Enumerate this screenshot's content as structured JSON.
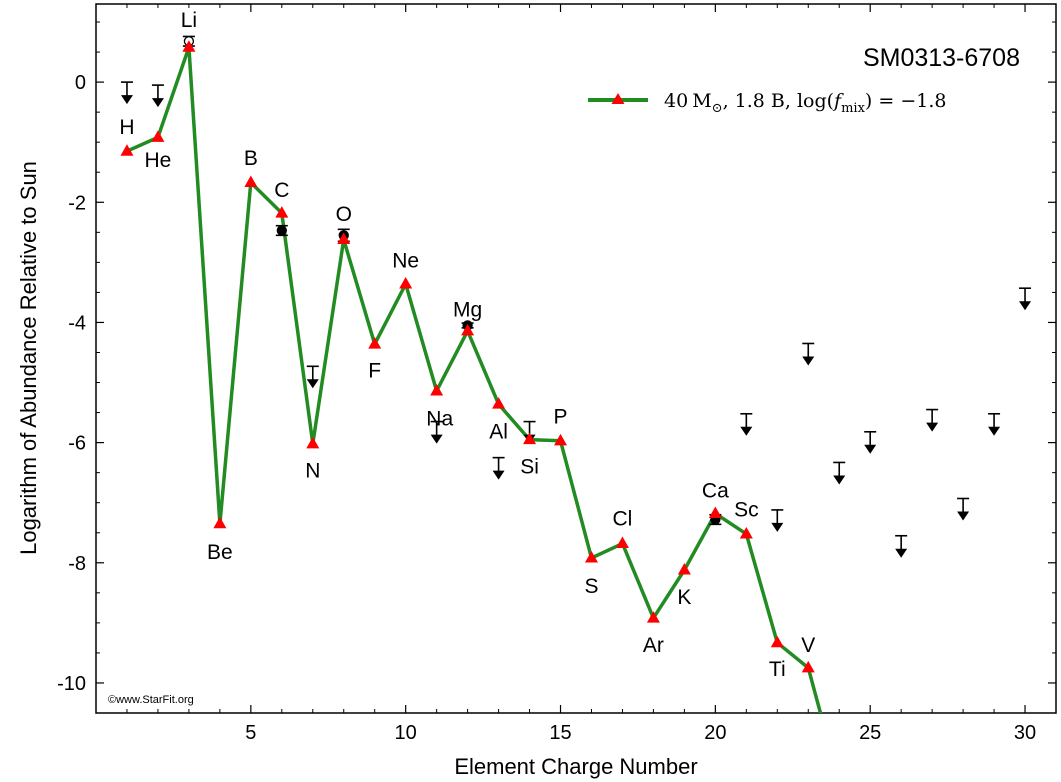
{
  "chart_data": {
    "type": "line",
    "title": "SM0313-6708",
    "xlabel": "Element Charge Number",
    "ylabel": "Logarithm of Abundance Relative to Sun",
    "xlim": [
      0,
      31
    ],
    "ylim": [
      -10.5,
      1.3
    ],
    "x_ticks": [
      5,
      10,
      15,
      20,
      25,
      30
    ],
    "y_ticks": [
      0,
      -2,
      -4,
      -6,
      -8,
      -10
    ],
    "grid": false,
    "legend_position": "top-right",
    "credit": "©www.StarFit.org",
    "model_series": {
      "name": "40 M⊙, 1.8 B, log(f_mix) = −1.8",
      "legend_parts": [
        "40",
        "M",
        "⊙",
        ", 1.8 B,  log(",
        "f",
        "mix",
        ") = −1.8"
      ],
      "line_color": "#228b22",
      "marker_color": "#ff0000",
      "marker": "triangle",
      "points": [
        {
          "z": 1,
          "y": -1.15
        },
        {
          "z": 2,
          "y": -0.92
        },
        {
          "z": 3,
          "y": 0.58
        },
        {
          "z": 4,
          "y": -7.35
        },
        {
          "z": 5,
          "y": -1.67
        },
        {
          "z": 6,
          "y": -2.18
        },
        {
          "z": 7,
          "y": -6.02
        },
        {
          "z": 8,
          "y": -2.62
        },
        {
          "z": 9,
          "y": -4.36
        },
        {
          "z": 10,
          "y": -3.36
        },
        {
          "z": 11,
          "y": -5.14
        },
        {
          "z": 12,
          "y": -4.14
        },
        {
          "z": 13,
          "y": -5.36
        },
        {
          "z": 14,
          "y": -5.95
        },
        {
          "z": 15,
          "y": -5.97
        },
        {
          "z": 16,
          "y": -7.92
        },
        {
          "z": 17,
          "y": -7.68
        },
        {
          "z": 18,
          "y": -8.92
        },
        {
          "z": 19,
          "y": -8.12
        },
        {
          "z": 20,
          "y": -7.18
        },
        {
          "z": 21,
          "y": -7.52
        },
        {
          "z": 22,
          "y": -9.33
        },
        {
          "z": 23,
          "y": -9.75
        },
        {
          "z": 23.5,
          "y": -10.7
        }
      ]
    },
    "observed_detections": [
      {
        "z": 3,
        "y": 0.68,
        "err": 0.08,
        "open": true
      },
      {
        "z": 6,
        "y": -2.47,
        "err": 0.08,
        "open": false
      },
      {
        "z": 8,
        "y": -2.55,
        "err": 0.1,
        "open": false
      },
      {
        "z": 12,
        "y": -4.05,
        "err": 0.04,
        "open": false
      },
      {
        "z": 20,
        "y": -7.28,
        "err": 0.08,
        "open": false
      }
    ],
    "upper_limits": [
      {
        "z": 1,
        "y": 0.0
      },
      {
        "z": 2,
        "y": -0.05
      },
      {
        "z": 7,
        "y": -4.73
      },
      {
        "z": 11,
        "y": -5.65
      },
      {
        "z": 13,
        "y": -6.25
      },
      {
        "z": 14,
        "y": -5.65
      },
      {
        "z": 21,
        "y": -5.52
      },
      {
        "z": 22,
        "y": -7.12
      },
      {
        "z": 23,
        "y": -4.35
      },
      {
        "z": 24,
        "y": -6.33
      },
      {
        "z": 25,
        "y": -5.82
      },
      {
        "z": 26,
        "y": -7.55
      },
      {
        "z": 27,
        "y": -5.45
      },
      {
        "z": 28,
        "y": -6.93
      },
      {
        "z": 29,
        "y": -5.52
      },
      {
        "z": 30,
        "y": -3.43
      }
    ],
    "element_labels": [
      {
        "text": "H",
        "z": 1,
        "y": -0.73
      },
      {
        "text": "He",
        "z": 2,
        "y": -1.28
      },
      {
        "text": "Li",
        "z": 3,
        "y": 1.05
      },
      {
        "text": "Be",
        "z": 4,
        "y": -7.8
      },
      {
        "text": "B",
        "z": 5,
        "y": -1.25
      },
      {
        "text": "C",
        "z": 6,
        "y": -1.78
      },
      {
        "text": "N",
        "z": 7,
        "y": -6.45
      },
      {
        "text": "O",
        "z": 8,
        "y": -2.18
      },
      {
        "text": "F",
        "z": 9,
        "y": -4.78
      },
      {
        "text": "Ne",
        "z": 10,
        "y": -2.95
      },
      {
        "text": "Na",
        "z": 11.1,
        "y": -5.58
      },
      {
        "text": "Mg",
        "z": 12,
        "y": -3.77
      },
      {
        "text": "Al",
        "z": 13,
        "y": -5.8
      },
      {
        "text": "Si",
        "z": 14,
        "y": -6.38
      },
      {
        "text": "P",
        "z": 15,
        "y": -5.55
      },
      {
        "text": "S",
        "z": 16,
        "y": -8.37
      },
      {
        "text": "Cl",
        "z": 17,
        "y": -7.25
      },
      {
        "text": "Ar",
        "z": 18,
        "y": -9.35
      },
      {
        "text": "K",
        "z": 19,
        "y": -8.55
      },
      {
        "text": "Ca",
        "z": 20,
        "y": -6.78
      },
      {
        "text": "Sc",
        "z": 21,
        "y": -7.1
      },
      {
        "text": "Ti",
        "z": 22,
        "y": -9.75
      },
      {
        "text": "V",
        "z": 23,
        "y": -9.35
      }
    ]
  }
}
